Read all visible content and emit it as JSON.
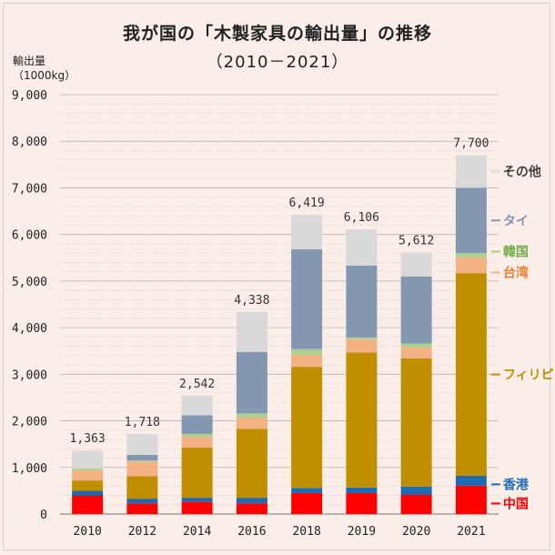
{
  "chart_data": {
    "type": "bar",
    "stacked": true,
    "title": "我が国の「木製家具の輸出量」の推移",
    "subtitle": "（2010－2021）",
    "ylabel": "輸出量",
    "yunit": "（1000kg）",
    "ylim": [
      0,
      9000
    ],
    "yticks": [
      0,
      1000,
      2000,
      3000,
      4000,
      5000,
      6000,
      7000,
      8000,
      9000
    ],
    "ytick_labels": [
      "0",
      "1,000",
      "2,000",
      "3,000",
      "4,000",
      "5,000",
      "6,000",
      "7,000",
      "8,000",
      "9,000"
    ],
    "categories": [
      "2010",
      "2012",
      "2014",
      "2016",
      "2018",
      "2019",
      "2020",
      "2021"
    ],
    "totals": [
      "1,363",
      "1,718",
      "2,542",
      "4,338",
      "6,419",
      "6,106",
      "5,612",
      "7,700"
    ],
    "series": [
      {
        "name": "中国",
        "color": "#ff0000",
        "values": [
          400,
          230,
          260,
          230,
          450,
          450,
          420,
          610
        ]
      },
      {
        "name": "香港",
        "color": "#1f6ab4",
        "values": [
          100,
          100,
          90,
          120,
          110,
          120,
          170,
          210
        ]
      },
      {
        "name": "フィリピン",
        "color": "#bf8f00",
        "values": [
          220,
          480,
          1080,
          1480,
          2600,
          2900,
          2750,
          4350
        ]
      },
      {
        "name": "台湾",
        "color": "#f4b183",
        "values": [
          220,
          320,
          230,
          240,
          260,
          280,
          240,
          340
        ]
      },
      {
        "name": "韓国",
        "color": "#a9d18e",
        "values": [
          40,
          20,
          60,
          90,
          120,
          40,
          80,
          90
        ]
      },
      {
        "name": "タイ",
        "color": "#8497b0",
        "values": [
          0,
          120,
          400,
          1320,
          2140,
          1540,
          1440,
          1400
        ]
      },
      {
        "name": "その他",
        "color": "#d9d9d9",
        "values": [
          383,
          448,
          422,
          858,
          739,
          776,
          512,
          700
        ]
      }
    ],
    "legend_placement": "right"
  }
}
